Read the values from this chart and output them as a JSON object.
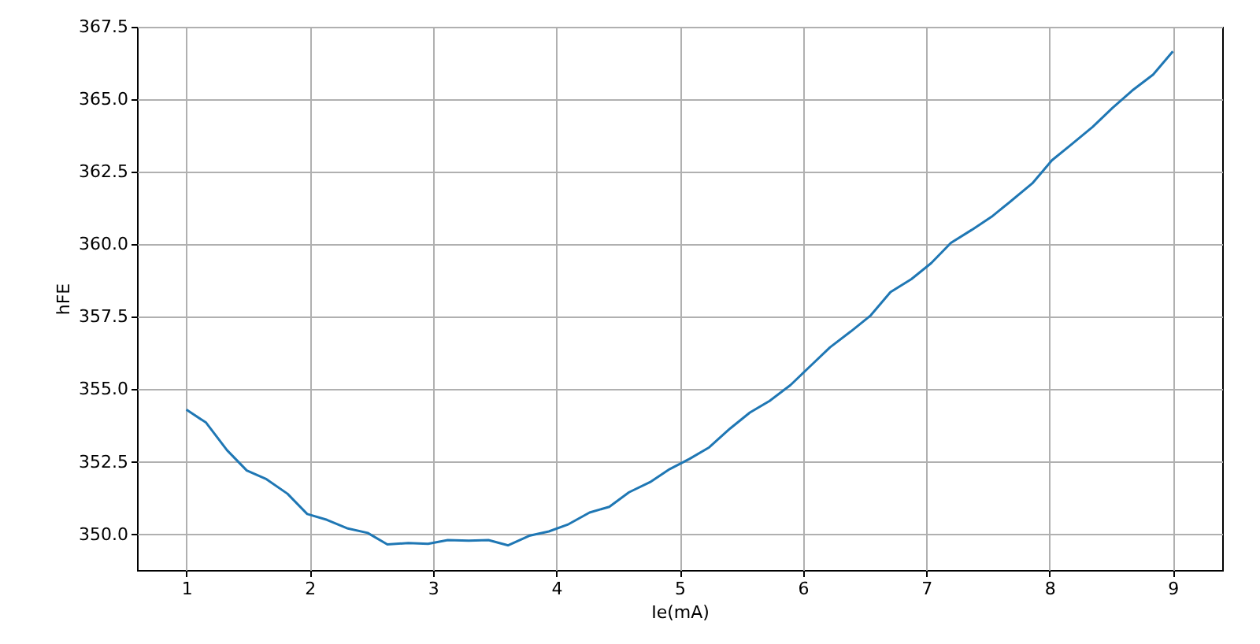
{
  "chart_data": {
    "type": "line",
    "xlabel": "Ie(mA)",
    "ylabel": "hFE",
    "x": [
      1.0,
      1.16,
      1.33,
      1.49,
      1.65,
      1.82,
      1.98,
      2.14,
      2.31,
      2.47,
      2.63,
      2.8,
      2.96,
      3.12,
      3.29,
      3.45,
      3.61,
      3.78,
      3.94,
      4.1,
      4.27,
      4.43,
      4.59,
      4.76,
      4.92,
      5.08,
      5.24,
      5.41,
      5.57,
      5.73,
      5.9,
      6.06,
      6.22,
      6.39,
      6.55,
      6.71,
      6.88,
      7.04,
      7.2,
      7.37,
      7.53,
      7.69,
      7.86,
      8.02,
      8.18,
      8.35,
      8.51,
      8.67,
      8.84,
      9.0
    ],
    "series": [
      {
        "color": "#1f77b4",
        "values": [
          354.3,
          353.85,
          352.9,
          352.2,
          351.9,
          351.4,
          350.7,
          350.5,
          350.2,
          350.05,
          349.65,
          349.7,
          349.67,
          349.8,
          349.78,
          349.8,
          349.62,
          349.95,
          350.1,
          350.35,
          350.75,
          350.95,
          351.45,
          351.8,
          352.25,
          352.6,
          353.0,
          353.65,
          354.2,
          354.6,
          355.15,
          355.8,
          356.45,
          357.0,
          357.55,
          358.35,
          358.8,
          359.35,
          360.05,
          360.5,
          360.95,
          361.5,
          362.1,
          362.9,
          363.45,
          364.05,
          364.7,
          365.3,
          365.85,
          366.65
        ]
      }
    ],
    "xlim": [
      0.6,
      9.4
    ],
    "ylim": [
      348.77,
      367.5
    ],
    "xticks": [
      1,
      2,
      3,
      4,
      5,
      6,
      7,
      8,
      9
    ],
    "yticks": [
      {
        "value": 350,
        "label": "350.0"
      },
      {
        "value": 352.5,
        "label": "352.5"
      },
      {
        "value": 355,
        "label": "355.0"
      },
      {
        "value": 357.5,
        "label": "357.5"
      },
      {
        "value": 360,
        "label": "360.0"
      },
      {
        "value": 362.5,
        "label": "362.5"
      },
      {
        "value": 365,
        "label": "365.0"
      },
      {
        "value": 367.5,
        "label": "367.5"
      }
    ],
    "grid": true,
    "marker": "none",
    "line_style": "solid"
  }
}
